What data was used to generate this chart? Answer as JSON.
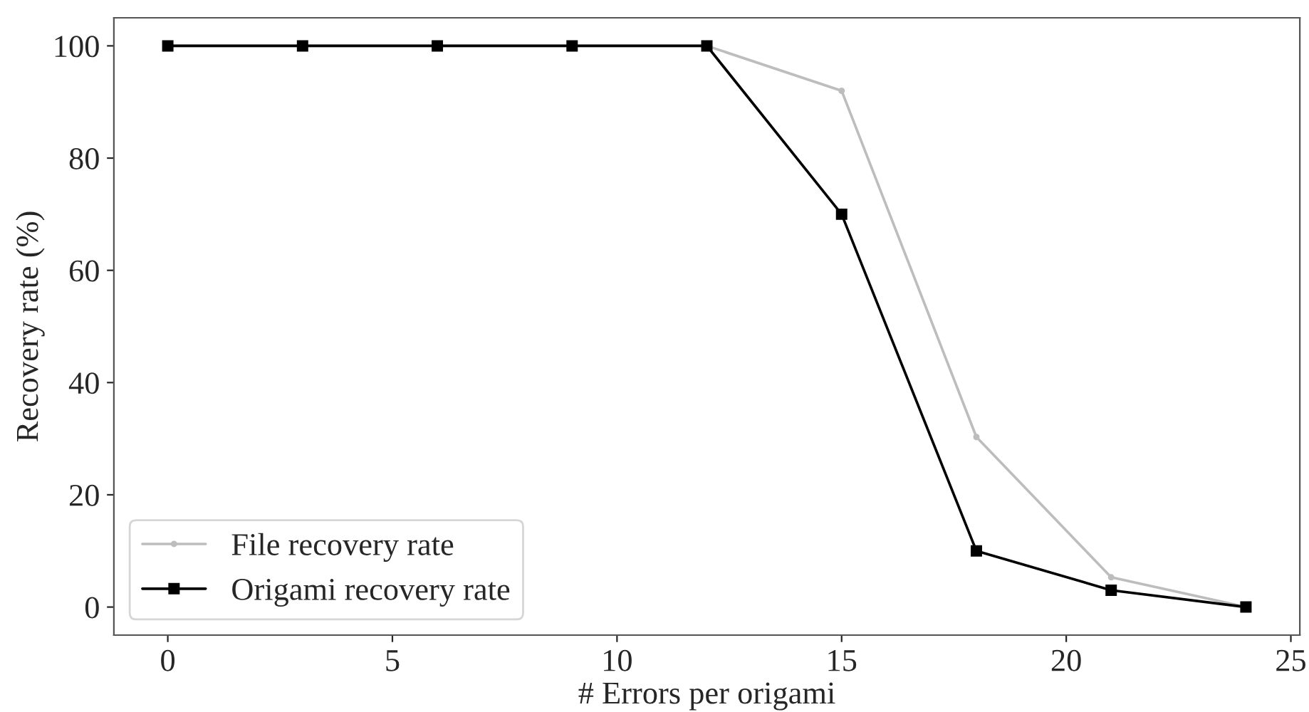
{
  "chart_data": {
    "type": "line",
    "xlabel": "# Errors per origami",
    "ylabel": "Recovery rate (%)",
    "x": [
      0,
      3,
      6,
      9,
      12,
      15,
      18,
      21,
      24
    ],
    "series": [
      {
        "name": "File recovery rate",
        "color": "#bdbdbd",
        "marker": "circle",
        "values": [
          100,
          100,
          100,
          100,
          100,
          92,
          30.3,
          5.3,
          0
        ]
      },
      {
        "name": "Origami recovery rate",
        "color": "#000000",
        "marker": "square",
        "values": [
          100,
          100,
          100,
          100,
          100,
          70,
          10,
          3,
          0
        ]
      }
    ],
    "xlim": [
      -1.2,
      25.2
    ],
    "xticks": [
      0,
      5,
      10,
      15,
      20,
      25
    ],
    "ylim": [
      -5,
      105
    ],
    "yticks": [
      0,
      20,
      40,
      60,
      80,
      100
    ],
    "grid": false,
    "legend": "bottom left",
    "line_style": "solid"
  }
}
